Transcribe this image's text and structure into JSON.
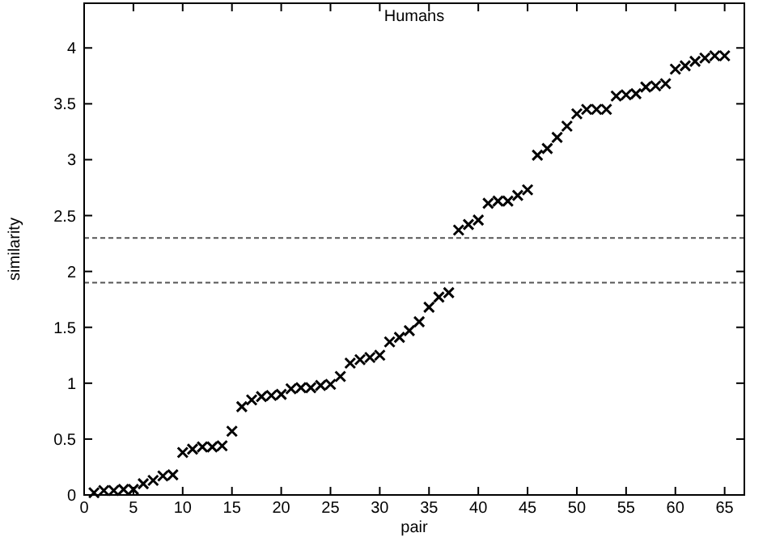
{
  "chart_data": {
    "type": "scatter",
    "title": "Humans",
    "xlabel": "pair",
    "ylabel": "similarity",
    "marker": "cross",
    "x": [
      1,
      2,
      3,
      4,
      5,
      6,
      7,
      8,
      9,
      10,
      11,
      12,
      13,
      14,
      15,
      16,
      17,
      18,
      19,
      20,
      21,
      22,
      23,
      24,
      25,
      26,
      27,
      28,
      29,
      30,
      31,
      32,
      33,
      34,
      35,
      36,
      37,
      38,
      39,
      40,
      41,
      42,
      43,
      44,
      45,
      46,
      47,
      48,
      49,
      50,
      51,
      52,
      53,
      54,
      55,
      56,
      57,
      58,
      59,
      60,
      61,
      62,
      63,
      64,
      65
    ],
    "series": [
      {
        "color": "#000000",
        "values": [
          0.02,
          0.04,
          0.04,
          0.05,
          0.05,
          0.1,
          0.13,
          0.17,
          0.18,
          0.38,
          0.41,
          0.43,
          0.43,
          0.44,
          0.57,
          0.79,
          0.85,
          0.88,
          0.89,
          0.9,
          0.95,
          0.96,
          0.96,
          0.98,
          0.99,
          1.06,
          1.18,
          1.21,
          1.23,
          1.25,
          1.37,
          1.41,
          1.47,
          1.55,
          1.68,
          1.77,
          1.81,
          2.37,
          2.42,
          2.46,
          2.61,
          2.63,
          2.63,
          2.68,
          2.73,
          3.04,
          3.1,
          3.2,
          3.3,
          3.41,
          3.45,
          3.45,
          3.45,
          3.57,
          3.58,
          3.59,
          3.65,
          3.66,
          3.68,
          3.81,
          3.84,
          3.88,
          3.91,
          3.93,
          3.93
        ]
      }
    ],
    "xlim": [
      0,
      67
    ],
    "ylim": [
      0,
      4.4
    ],
    "xticks": [
      0,
      5,
      10,
      15,
      20,
      25,
      30,
      35,
      40,
      45,
      50,
      55,
      60,
      65
    ],
    "yticks": [
      0,
      0.5,
      1,
      1.5,
      2,
      2.5,
      3,
      3.5,
      4
    ],
    "ref_lines": [
      {
        "axis": "y",
        "value": 2.3,
        "line_style": "dashed",
        "color": "#555555"
      },
      {
        "axis": "y",
        "value": 1.9,
        "line_style": "dashed",
        "color": "#555555"
      }
    ],
    "grid": false
  }
}
